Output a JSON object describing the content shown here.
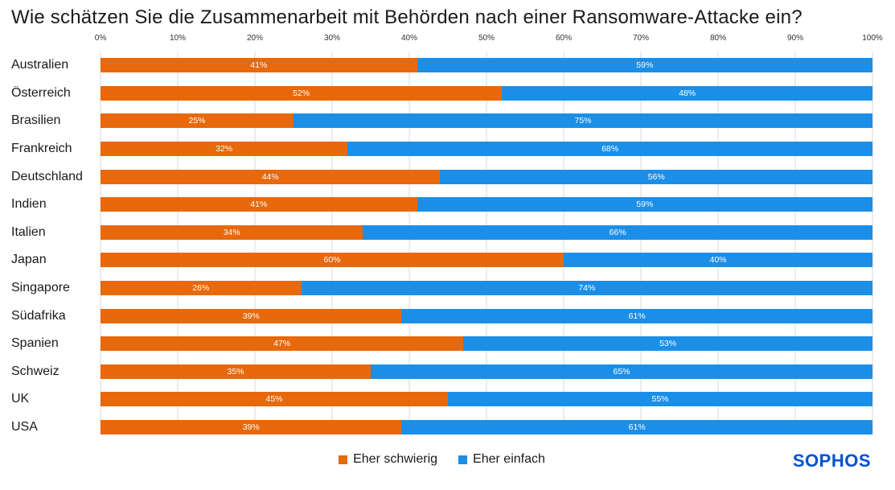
{
  "title": "Wie schätzen Sie die Zusammenarbeit mit Behörden nach einer Ransomware-Attacke ein?",
  "logo_text": "SOPHOS",
  "colors": {
    "schwierig": "#E8680C",
    "einfach": "#1B8FE8",
    "logo": "#0052CC",
    "grid": "#D9D9D9"
  },
  "legend": {
    "items": [
      {
        "label": "Eher schwierig",
        "color": "#E8680C"
      },
      {
        "label": "Eher einfach",
        "color": "#1B8FE8"
      }
    ]
  },
  "chart_data": {
    "type": "bar",
    "orientation": "horizontal",
    "stacked": true,
    "unit": "%",
    "grid": true,
    "legend_position": "bottom",
    "x_axis": {
      "position": "top",
      "range": [
        0,
        100
      ],
      "tick_labels": [
        "0%",
        "10%",
        "20%",
        "30%",
        "40%",
        "50%",
        "60%",
        "70%",
        "80%",
        "90%",
        "100%"
      ]
    },
    "categories": [
      "Australien",
      "Österreich",
      "Brasilien",
      "Frankreich",
      "Deutschland",
      "Indien",
      "Italien",
      "Japan",
      "Singapore",
      "Südafrika",
      "Spanien",
      "Schweiz",
      "UK",
      "USA"
    ],
    "series": [
      {
        "name": "Eher schwierig",
        "color": "#E8680C",
        "values": [
          41,
          52,
          25,
          32,
          44,
          41,
          34,
          60,
          26,
          39,
          47,
          35,
          45,
          39
        ]
      },
      {
        "name": "Eher einfach",
        "color": "#1B8FE8",
        "values": [
          59,
          48,
          75,
          68,
          56,
          59,
          66,
          40,
          74,
          61,
          53,
          65,
          55,
          61
        ]
      }
    ]
  }
}
